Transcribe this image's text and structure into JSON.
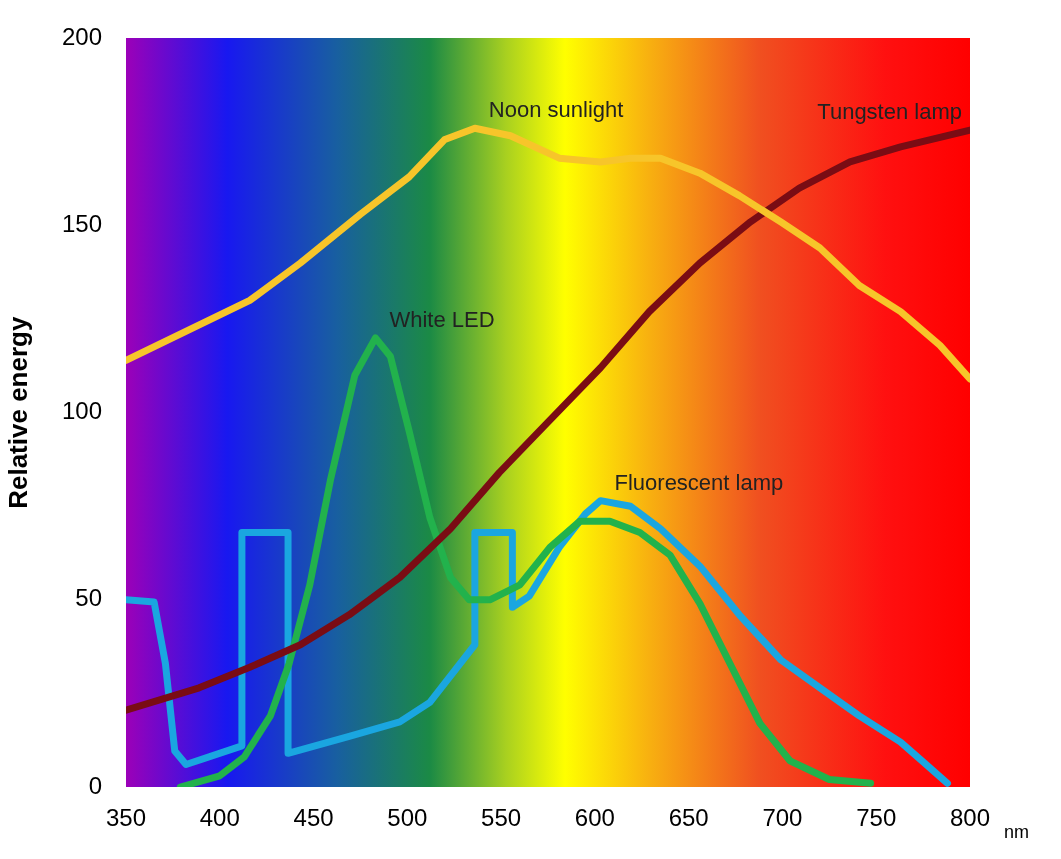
{
  "chart_data": {
    "type": "line",
    "xlabel": "nm",
    "ylabel": "Relative energy",
    "xlim": [
      350,
      800
    ],
    "xticks": [
      350,
      400,
      450,
      500,
      550,
      600,
      650,
      700,
      750,
      800
    ],
    "ylim": [
      0,
      200
    ],
    "yticks": [
      0,
      50,
      100,
      150,
      200
    ],
    "grid": false,
    "legend": false,
    "marker": "none",
    "line_style": "solid",
    "series": [
      {
        "name": "Noon sunlight",
        "color": "#f7c52a",
        "x": [
          350,
          416,
          443,
          475,
          501,
          520,
          536,
          555,
          581,
          603,
          619,
          635,
          656,
          677,
          699,
          720,
          741,
          763,
          784,
          800
        ],
        "values": [
          114,
          130,
          140,
          153,
          163,
          173,
          176,
          174,
          168,
          167,
          168,
          168,
          164,
          158,
          151,
          144,
          134,
          127,
          118,
          109
        ]
      },
      {
        "name": "Tungsten lamp",
        "color": "#7a0c14",
        "x": [
          350,
          389,
          416,
          443,
          469,
          496,
          523,
          549,
          576,
          603,
          629,
          656,
          683,
          709,
          736,
          763,
          800
        ],
        "values": [
          20.5,
          26.5,
          32,
          38,
          46,
          56,
          69,
          84,
          98,
          112,
          127,
          140,
          151,
          160,
          167,
          171,
          175.5
        ]
      },
      {
        "name": "White LED",
        "color": "#22b24c",
        "x": [
          379,
          400,
          413,
          427,
          437,
          448,
          459,
          472,
          483,
          491,
          501,
          512,
          523,
          533,
          544,
          560,
          576,
          592,
          608,
          624,
          640,
          656,
          672,
          688,
          704,
          725,
          747
        ],
        "values": [
          0,
          3,
          8,
          19,
          33,
          54,
          82,
          110,
          120,
          115,
          95,
          72,
          56,
          50,
          50,
          54,
          64,
          71,
          71,
          68,
          62,
          49,
          33,
          17,
          7,
          2,
          1
        ]
      },
      {
        "name": "Fluorescent lamp",
        "color": "#1aa6e0",
        "x": [
          350,
          365,
          371,
          376,
          382,
          411.8,
          411.8,
          436.4,
          436.4,
          469,
          496,
          512,
          536,
          536,
          556,
          556,
          565,
          581,
          595,
          603,
          619,
          635,
          656,
          677,
          699,
          720,
          741,
          763,
          788
        ],
        "values": [
          50,
          49.4,
          33,
          9.6,
          6,
          11,
          68,
          68,
          9,
          13.5,
          17.4,
          22.6,
          38,
          68,
          68,
          48,
          51,
          64,
          73,
          76.5,
          75,
          69,
          59,
          46,
          34,
          26.5,
          19,
          12,
          1
        ]
      }
    ]
  }
}
